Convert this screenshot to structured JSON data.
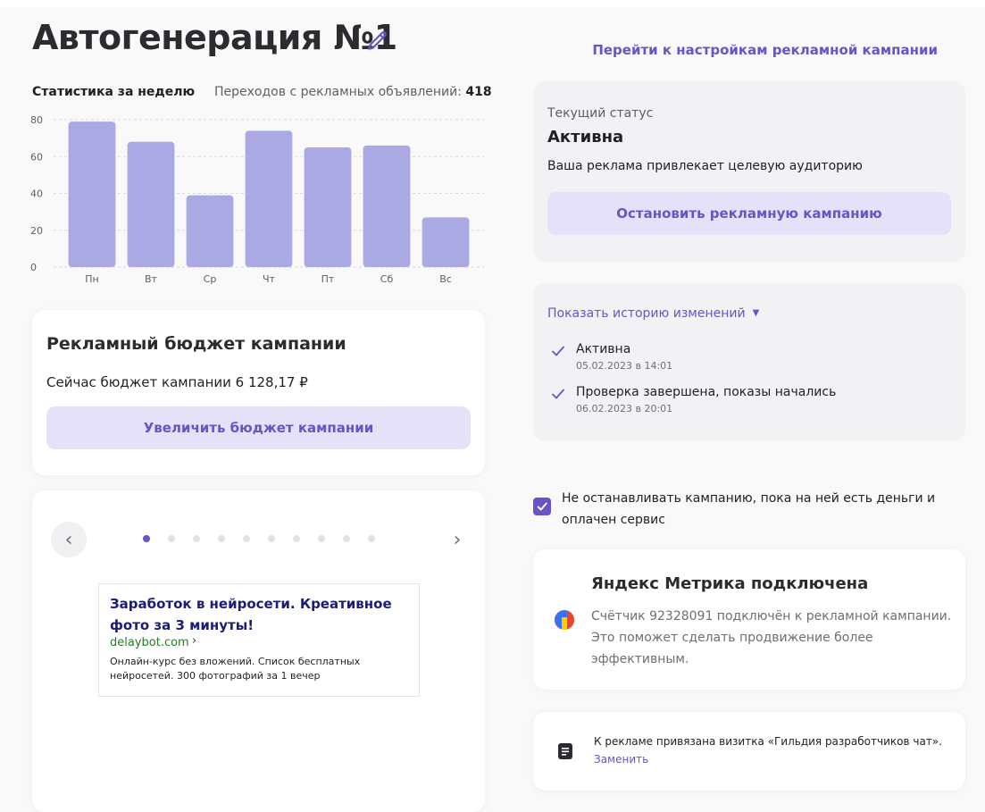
{
  "header": {
    "title": "Автогенерация №1",
    "settings_link": "Перейти к настройкам рекламной кампании"
  },
  "stats": {
    "title": "Статистика за неделю",
    "clicks_label": "Переходов с рекламных объявлений:",
    "clicks_value": "418"
  },
  "chart_data": {
    "type": "bar",
    "categories": [
      "Пн",
      "Вт",
      "Ср",
      "Чт",
      "Пт",
      "Сб",
      "Вс"
    ],
    "values": [
      79,
      68,
      39,
      74,
      65,
      66,
      27
    ],
    "y_ticks": [
      "0",
      "20",
      "40",
      "60",
      "80"
    ],
    "ylim": [
      0,
      80
    ],
    "grid": true,
    "bar_color": "#aaa9e3"
  },
  "budget": {
    "title": "Рекламный бюджет кампании",
    "current": "Сейчас бюджет кампании 6 128,17 ₽",
    "button": "Увеличить бюджет кампании"
  },
  "preview": {
    "prev_icon": "‹",
    "next_icon": "›",
    "dots_total": 10,
    "active_dot": 0,
    "ad": {
      "title": "Заработок в нейросети. Креативное фото за 3 минуты!",
      "domain": "delaybot.com",
      "text": "Онлайн-курс без вложений. Список бесплатных нейросетей. 300 фотографий за 1 вечер"
    }
  },
  "status": {
    "label": "Текущий статус",
    "value": "Активна",
    "description": "Ваша реклама привлекает целевую аудиторию",
    "button": "Остановить рекламную кампанию"
  },
  "history": {
    "toggle": "Показать историю изменений",
    "items": [
      {
        "title": "Активна",
        "date": "05.02.2023 в 14:01"
      },
      {
        "title": "Проверка завершена, показы начались",
        "date": "06.02.2023 в 20:01"
      }
    ]
  },
  "keep_running": {
    "checked": true,
    "label": "Не останавливать кампанию, пока на ней есть деньги и оплачен сервис"
  },
  "metrika": {
    "title": "Яндекс Метрика подключена",
    "text": "Счётчик 92328091 подключён к рекламной кампании. Это поможет сделать продвижение более эффективным."
  },
  "vizitka": {
    "text": "К рекламе привязана визитка «Гильдия разработчиков чат».",
    "link": "Заменить"
  },
  "colors": {
    "accent": "#6a52c7",
    "button_bg": "#e5e1f8",
    "bar": "#aaa9e3"
  }
}
